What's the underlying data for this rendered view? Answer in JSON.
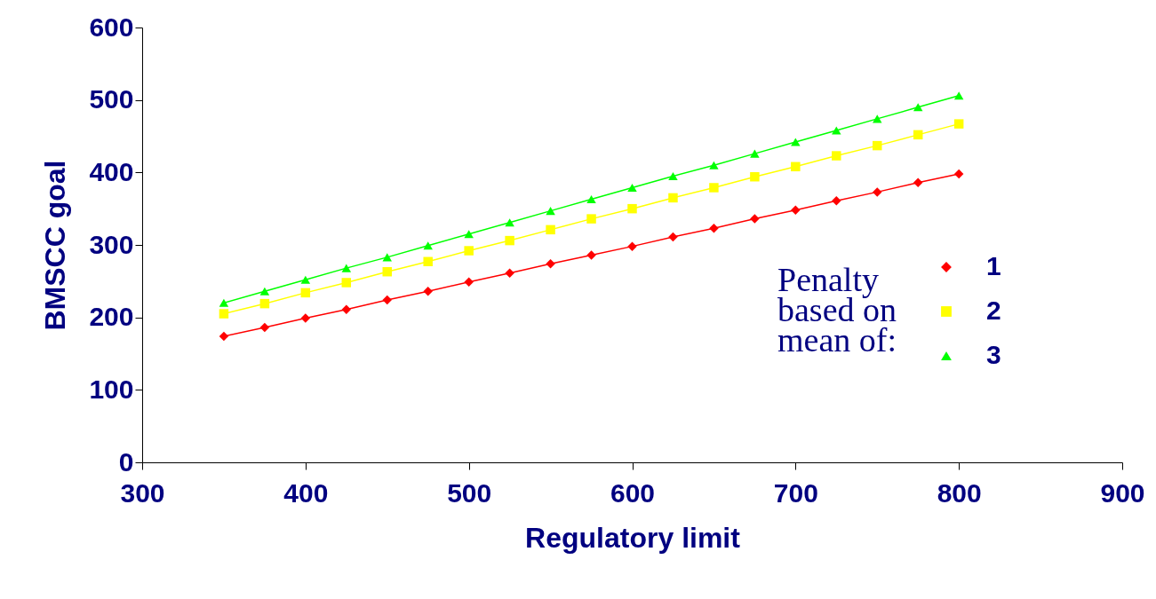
{
  "chart_data": {
    "type": "line",
    "xlabel": "Regulatory limit",
    "ylabel": "BMSCC goal",
    "legend_title": "Penalty based on mean of:",
    "legend": "right",
    "grid": false,
    "x": [
      350,
      375,
      400,
      425,
      450,
      475,
      500,
      525,
      550,
      575,
      600,
      625,
      650,
      675,
      700,
      725,
      750,
      775,
      800
    ],
    "xlim": [
      300,
      900
    ],
    "xticks": [
      300,
      400,
      500,
      600,
      700,
      800,
      900
    ],
    "ylim": [
      0,
      600
    ],
    "yticks": [
      0,
      100,
      200,
      300,
      400,
      500,
      600
    ],
    "series": [
      {
        "name": "1",
        "color": "#ff0000",
        "marker": "diamond",
        "values": [
          174,
          186,
          199,
          211,
          224,
          236,
          249,
          261,
          274,
          286,
          298,
          311,
          323,
          336,
          348,
          361,
          373,
          386,
          398
        ]
      },
      {
        "name": "2",
        "color": "#ffff00",
        "marker": "square",
        "values": [
          205,
          219,
          234,
          248,
          263,
          277,
          292,
          306,
          321,
          336,
          350,
          365,
          379,
          394,
          408,
          423,
          437,
          452,
          467
        ]
      },
      {
        "name": "3",
        "color": "#00ff00",
        "marker": "triangle",
        "values": [
          220,
          236,
          252,
          268,
          283,
          299,
          315,
          331,
          347,
          363,
          379,
          395,
          410,
          426,
          442,
          458,
          474,
          490,
          506
        ]
      }
    ]
  }
}
